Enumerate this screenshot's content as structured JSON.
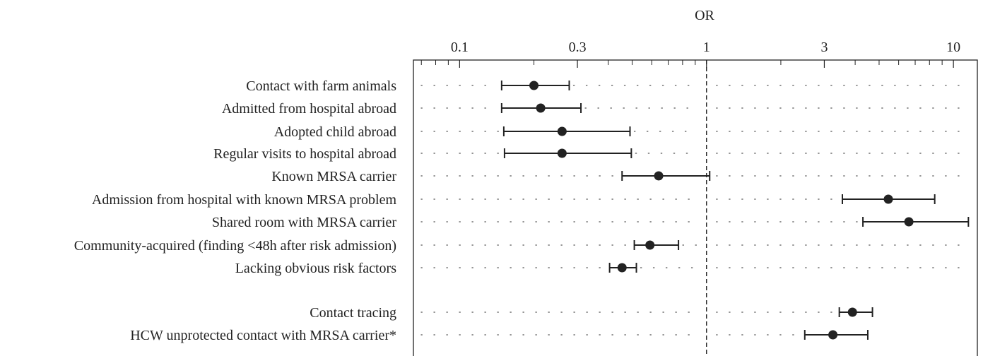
{
  "chart_data": {
    "type": "forest",
    "xlabel": "OR",
    "x_scale": "log",
    "xlim": [
      0.065,
      12.5
    ],
    "reference_line": 1,
    "tick_labels": [
      {
        "value": 0.1,
        "label": "0.1"
      },
      {
        "value": 0.3,
        "label": "0.3"
      },
      {
        "value": 1,
        "label": "1"
      },
      {
        "value": 3,
        "label": "3"
      },
      {
        "value": 10,
        "label": "10"
      }
    ],
    "minor_ticks": [
      0.07,
      0.08,
      0.09,
      0.2,
      0.4,
      0.5,
      0.6,
      0.7,
      0.8,
      0.9,
      2,
      4,
      5,
      6,
      7,
      8,
      9
    ],
    "rows": [
      {
        "label": "Contact with farm animals",
        "or": 0.2,
        "lower": 0.148,
        "upper": 0.278
      },
      {
        "label": "Admitted from hospital abroad",
        "or": 0.213,
        "lower": 0.148,
        "upper": 0.31
      },
      {
        "label": "Adopted child abroad",
        "or": 0.26,
        "lower": 0.151,
        "upper": 0.49
      },
      {
        "label": "Regular visits to hospital abroad",
        "or": 0.26,
        "lower": 0.152,
        "upper": 0.496
      },
      {
        "label": "Known MRSA carrier",
        "or": 0.64,
        "lower": 0.455,
        "upper": 1.03
      },
      {
        "label": "Admission from hospital with known MRSA problem",
        "or": 5.45,
        "lower": 3.55,
        "upper": 8.4
      },
      {
        "label": "Shared room with MRSA carrier",
        "or": 6.6,
        "lower": 4.3,
        "upper": 11.5
      },
      {
        "label": "Community-acquired (finding <48h after risk admission)",
        "or": 0.59,
        "lower": 0.51,
        "upper": 0.77
      },
      {
        "label": "Lacking obvious risk factors",
        "or": 0.455,
        "lower": 0.405,
        "upper": 0.52
      },
      {
        "label": "Contact tracing",
        "or": 3.9,
        "lower": 3.45,
        "upper": 4.7
      },
      {
        "label": "HCW unprotected contact with MRSA carrier*",
        "or": 3.25,
        "lower": 2.5,
        "upper": 4.5
      }
    ]
  }
}
